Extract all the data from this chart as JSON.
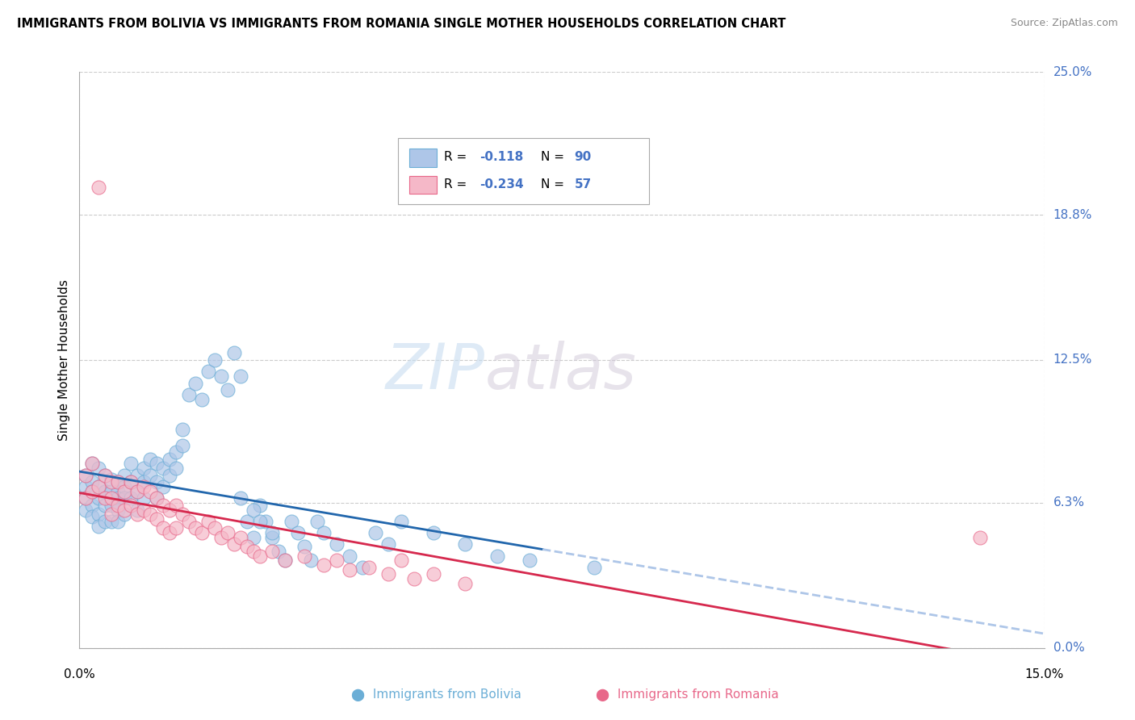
{
  "title": "IMMIGRANTS FROM BOLIVIA VS IMMIGRANTS FROM ROMANIA SINGLE MOTHER HOUSEHOLDS CORRELATION CHART",
  "source": "Source: ZipAtlas.com",
  "ylabel": "Single Mother Households",
  "xlim": [
    0.0,
    0.15
  ],
  "ylim": [
    0.0,
    0.25
  ],
  "xtick_labels": [
    "0.0%",
    "15.0%"
  ],
  "ytick_labels": [
    "25.0%",
    "18.8%",
    "12.5%",
    "6.3%",
    "0.0%"
  ],
  "ytick_values": [
    0.0,
    0.063,
    0.125,
    0.188,
    0.25
  ],
  "xtick_values": [
    0.0,
    0.15
  ],
  "bolivia_color": "#aec6e8",
  "romania_color": "#f5b8c8",
  "bolivia_edge": "#6baed6",
  "romania_edge": "#e8688a",
  "trend_bolivia_color": "#2166ac",
  "trend_bolivia_dash_color": "#aec6e8",
  "trend_romania_color": "#d6294e",
  "R_bolivia": -0.118,
  "N_bolivia": 90,
  "R_romania": -0.234,
  "N_romania": 57,
  "watermark_zip": "ZIP",
  "watermark_atlas": "atlas",
  "grid_color": "#cccccc",
  "background_color": "#ffffff",
  "right_label_color": "#4472c4",
  "bolivia_x": [
    0.001,
    0.001,
    0.001,
    0.001,
    0.002,
    0.002,
    0.002,
    0.002,
    0.002,
    0.003,
    0.003,
    0.003,
    0.003,
    0.003,
    0.004,
    0.004,
    0.004,
    0.004,
    0.005,
    0.005,
    0.005,
    0.005,
    0.006,
    0.006,
    0.006,
    0.006,
    0.006,
    0.007,
    0.007,
    0.007,
    0.007,
    0.008,
    0.008,
    0.008,
    0.009,
    0.009,
    0.009,
    0.01,
    0.01,
    0.01,
    0.011,
    0.011,
    0.012,
    0.012,
    0.012,
    0.013,
    0.013,
    0.014,
    0.014,
    0.015,
    0.015,
    0.016,
    0.016,
    0.017,
    0.018,
    0.019,
    0.02,
    0.021,
    0.022,
    0.023,
    0.024,
    0.025,
    0.026,
    0.027,
    0.028,
    0.029,
    0.03,
    0.031,
    0.032,
    0.033,
    0.034,
    0.035,
    0.036,
    0.037,
    0.038,
    0.04,
    0.042,
    0.044,
    0.046,
    0.048,
    0.05,
    0.055,
    0.06,
    0.065,
    0.07,
    0.08,
    0.025,
    0.027,
    0.028,
    0.03
  ],
  "bolivia_y": [
    0.075,
    0.07,
    0.065,
    0.06,
    0.08,
    0.072,
    0.068,
    0.062,
    0.057,
    0.078,
    0.07,
    0.065,
    0.058,
    0.053,
    0.075,
    0.068,
    0.062,
    0.055,
    0.073,
    0.068,
    0.062,
    0.055,
    0.072,
    0.068,
    0.065,
    0.06,
    0.055,
    0.075,
    0.07,
    0.065,
    0.058,
    0.08,
    0.072,
    0.065,
    0.075,
    0.068,
    0.06,
    0.078,
    0.072,
    0.065,
    0.082,
    0.075,
    0.08,
    0.072,
    0.065,
    0.078,
    0.07,
    0.082,
    0.075,
    0.085,
    0.078,
    0.095,
    0.088,
    0.11,
    0.115,
    0.108,
    0.12,
    0.125,
    0.118,
    0.112,
    0.128,
    0.118,
    0.055,
    0.048,
    0.062,
    0.055,
    0.048,
    0.042,
    0.038,
    0.055,
    0.05,
    0.044,
    0.038,
    0.055,
    0.05,
    0.045,
    0.04,
    0.035,
    0.05,
    0.045,
    0.055,
    0.05,
    0.045,
    0.04,
    0.038,
    0.035,
    0.065,
    0.06,
    0.055,
    0.05
  ],
  "romania_x": [
    0.001,
    0.001,
    0.002,
    0.002,
    0.003,
    0.003,
    0.004,
    0.004,
    0.005,
    0.005,
    0.005,
    0.006,
    0.006,
    0.007,
    0.007,
    0.008,
    0.008,
    0.009,
    0.009,
    0.01,
    0.01,
    0.011,
    0.011,
    0.012,
    0.012,
    0.013,
    0.013,
    0.014,
    0.014,
    0.015,
    0.015,
    0.016,
    0.017,
    0.018,
    0.019,
    0.02,
    0.021,
    0.022,
    0.023,
    0.024,
    0.025,
    0.026,
    0.027,
    0.028,
    0.03,
    0.032,
    0.035,
    0.038,
    0.04,
    0.042,
    0.045,
    0.048,
    0.05,
    0.052,
    0.055,
    0.06,
    0.14
  ],
  "romania_y": [
    0.075,
    0.065,
    0.08,
    0.068,
    0.2,
    0.07,
    0.075,
    0.065,
    0.072,
    0.065,
    0.058,
    0.072,
    0.062,
    0.068,
    0.06,
    0.072,
    0.062,
    0.068,
    0.058,
    0.07,
    0.06,
    0.068,
    0.058,
    0.065,
    0.056,
    0.062,
    0.052,
    0.06,
    0.05,
    0.062,
    0.052,
    0.058,
    0.055,
    0.052,
    0.05,
    0.055,
    0.052,
    0.048,
    0.05,
    0.045,
    0.048,
    0.044,
    0.042,
    0.04,
    0.042,
    0.038,
    0.04,
    0.036,
    0.038,
    0.034,
    0.035,
    0.032,
    0.038,
    0.03,
    0.032,
    0.028,
    0.048
  ]
}
